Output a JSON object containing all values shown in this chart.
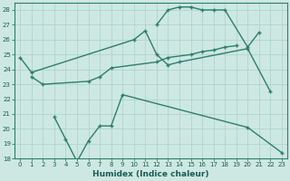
{
  "xlabel": "Humidex (Indice chaleur)",
  "bg_color": "#cde8e2",
  "grid_color": "#a8d0c8",
  "line_color": "#2e7d6e",
  "ylim": [
    18,
    28.5
  ],
  "xlim": [
    -0.5,
    23.5
  ],
  "yticks": [
    18,
    19,
    20,
    21,
    22,
    23,
    24,
    25,
    26,
    27,
    28
  ],
  "xticks": [
    0,
    1,
    2,
    3,
    4,
    5,
    6,
    7,
    8,
    9,
    10,
    11,
    12,
    13,
    14,
    15,
    16,
    17,
    18,
    19,
    20,
    21,
    22,
    23
  ],
  "line1_x": [
    0,
    1,
    10,
    11,
    12,
    13,
    14,
    20,
    22
  ],
  "line1_y": [
    24.8,
    23.8,
    26.0,
    26.6,
    25.0,
    24.3,
    24.5,
    25.4,
    22.5
  ],
  "line2_x": [
    1,
    2,
    6,
    7,
    8,
    12,
    13,
    15,
    16,
    17,
    18,
    19
  ],
  "line2_y": [
    23.5,
    23.0,
    23.2,
    23.5,
    24.1,
    24.5,
    24.8,
    25.0,
    25.2,
    25.3,
    25.5,
    25.6
  ],
  "line3_x": [
    3,
    4,
    5,
    6,
    7,
    8,
    9,
    20,
    23
  ],
  "line3_y": [
    20.8,
    19.3,
    17.8,
    19.2,
    20.2,
    20.2,
    22.3,
    20.1,
    18.4
  ],
  "line4_x": [
    12,
    13,
    14,
    15,
    16,
    17,
    18,
    20,
    21
  ],
  "line4_y": [
    27.0,
    28.0,
    28.2,
    28.2,
    28.0,
    28.0,
    28.0,
    25.5,
    26.5
  ],
  "marker": "+",
  "markersize": 3.5,
  "linewidth": 1.0,
  "tick_fontsize": 5.0,
  "label_fontsize": 6.5
}
